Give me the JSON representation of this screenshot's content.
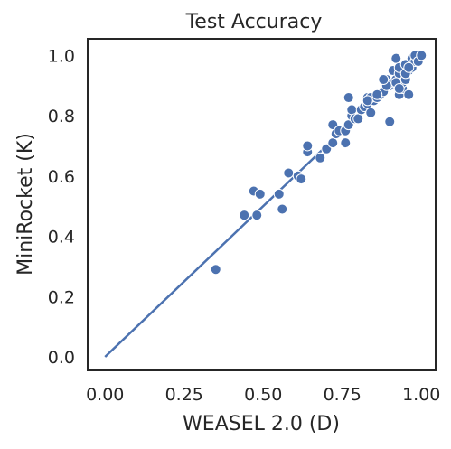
{
  "chart_data": {
    "type": "scatter",
    "title": "Test Accuracy",
    "xlabel": "WEASEL 2.0 (D)",
    "ylabel": "MiniRocket (K)",
    "xlim": [
      -0.055,
      1.045
    ],
    "ylim": [
      -0.045,
      1.055
    ],
    "xticks": [
      "0.00",
      "0.25",
      "0.50",
      "0.75",
      "1.00"
    ],
    "xtick_values": [
      0,
      0.25,
      0.5,
      0.75,
      1.0
    ],
    "yticks": [
      "0.0",
      "0.2",
      "0.4",
      "0.6",
      "0.8",
      "1.0"
    ],
    "ytick_values": [
      0,
      0.2,
      0.4,
      0.6,
      0.8,
      1.0
    ],
    "grid": false,
    "point_color": "#4c72b0",
    "line_color": "#4c72b0",
    "reference_line": {
      "x": [
        0,
        1
      ],
      "y": [
        0,
        1
      ]
    },
    "points": {
      "x": [
        0.35,
        0.44,
        0.47,
        0.48,
        0.49,
        0.55,
        0.56,
        0.58,
        0.61,
        0.62,
        0.64,
        0.64,
        0.68,
        0.7,
        0.72,
        0.72,
        0.73,
        0.74,
        0.76,
        0.76,
        0.77,
        0.77,
        0.78,
        0.78,
        0.79,
        0.8,
        0.81,
        0.82,
        0.83,
        0.83,
        0.84,
        0.85,
        0.84,
        0.86,
        0.87,
        0.88,
        0.89,
        0.9,
        0.9,
        0.91,
        0.91,
        0.92,
        0.92,
        0.93,
        0.93,
        0.93,
        0.94,
        0.94,
        0.95,
        0.95,
        0.96,
        0.96,
        0.97,
        0.97,
        0.98,
        0.98,
        0.99,
        1.0,
        0.83,
        0.86,
        0.89,
        0.92,
        0.95,
        0.96,
        0.88,
        0.93
      ],
      "y": [
        0.29,
        0.47,
        0.55,
        0.47,
        0.54,
        0.54,
        0.49,
        0.61,
        0.6,
        0.59,
        0.68,
        0.7,
        0.66,
        0.69,
        0.71,
        0.77,
        0.74,
        0.75,
        0.71,
        0.75,
        0.77,
        0.86,
        0.8,
        0.82,
        0.79,
        0.79,
        0.82,
        0.83,
        0.84,
        0.86,
        0.81,
        0.85,
        0.86,
        0.86,
        0.87,
        0.88,
        0.92,
        0.9,
        0.78,
        0.91,
        0.95,
        0.92,
        0.99,
        0.87,
        0.94,
        0.96,
        0.89,
        0.91,
        0.92,
        0.97,
        0.95,
        0.87,
        0.99,
        0.96,
        0.98,
        1.0,
        0.98,
        1.0,
        0.85,
        0.87,
        0.9,
        0.91,
        0.94,
        0.96,
        0.92,
        0.89
      ]
    }
  }
}
